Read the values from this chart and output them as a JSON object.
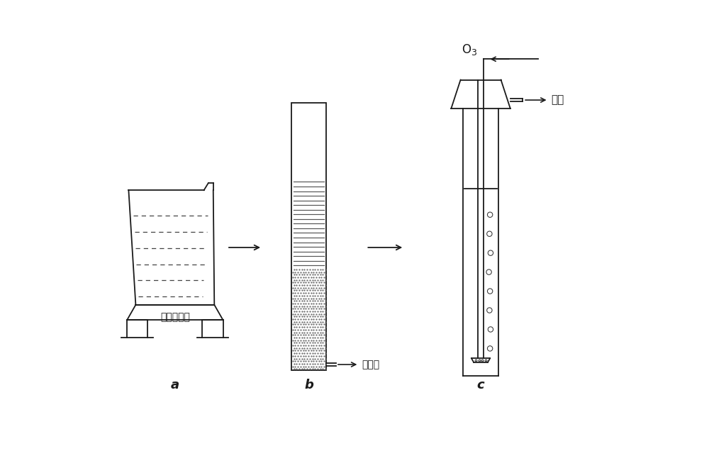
{
  "bg_color": "#ffffff",
  "line_color": "#1a1a1a",
  "label_a": "a",
  "label_b": "b",
  "label_c": "c",
  "label_magnetic": "磁力搞拌器",
  "label_outlet": "出水口",
  "label_o3": "O3",
  "label_tailgas": "尾气",
  "figsize": [
    10.0,
    6.43
  ],
  "dpi": 100
}
